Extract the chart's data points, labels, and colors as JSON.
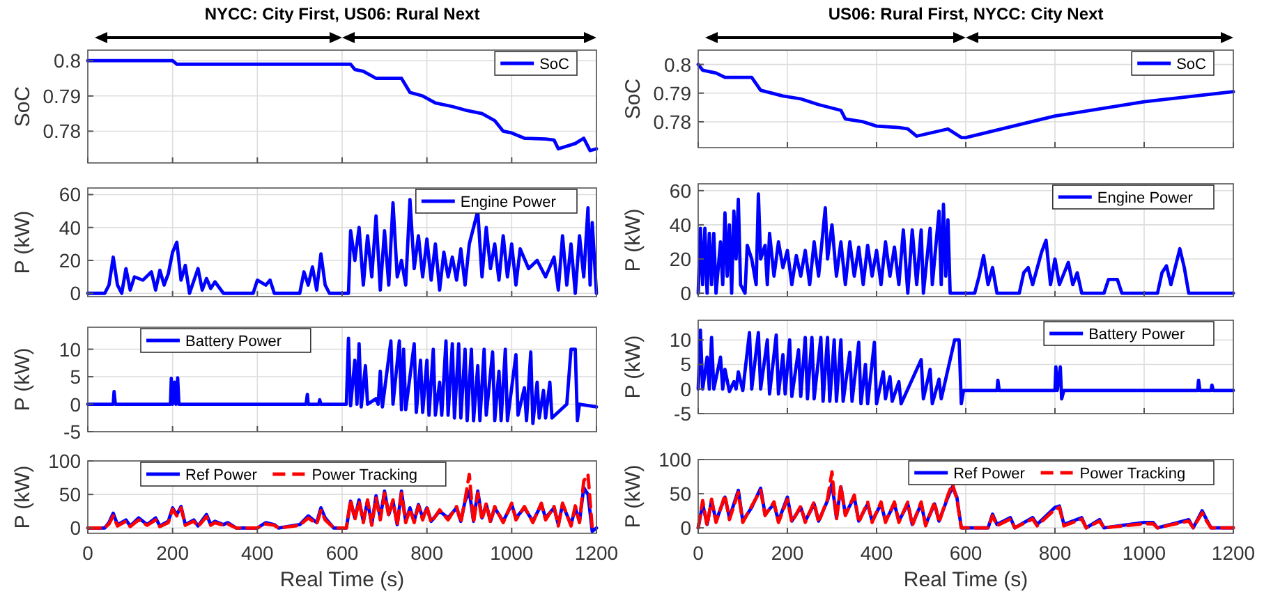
{
  "chart_data": [
    {
      "type": "line",
      "title": "NYCC: City First, US06: Rural Next",
      "ylabel": "SoC",
      "xlim": [
        0,
        1200
      ],
      "xticks": [
        0,
        200,
        400,
        600,
        800,
        1000,
        1200
      ],
      "ylim": [
        0.771,
        0.803
      ],
      "yticks": [
        0.78,
        0.79,
        0.8
      ],
      "grid": true,
      "legend": "top right",
      "tick_labels": "y",
      "series": [
        {
          "name": "SoC",
          "color": "#0000ff",
          "x": [
            0,
            200,
            210,
            620,
            630,
            650,
            680,
            740,
            760,
            790,
            820,
            860,
            890,
            930,
            960,
            980,
            1000,
            1030,
            1080,
            1100,
            1110,
            1150,
            1170,
            1185,
            1200
          ],
          "values": [
            0.8,
            0.8,
            0.799,
            0.799,
            0.7975,
            0.797,
            0.795,
            0.795,
            0.791,
            0.79,
            0.788,
            0.787,
            0.786,
            0.785,
            0.783,
            0.78,
            0.7795,
            0.778,
            0.7778,
            0.7775,
            0.775,
            0.7765,
            0.778,
            0.7745,
            0.775
          ]
        }
      ]
    },
    {
      "type": "line",
      "ylabel": "P (kW)",
      "xlim": [
        0,
        1200
      ],
      "xticks": [
        0,
        200,
        400,
        600,
        800,
        1000,
        1200
      ],
      "ylim": [
        -2,
        64
      ],
      "yticks": [
        0,
        20,
        40,
        60
      ],
      "grid": true,
      "legend": "top right",
      "tick_labels": "y",
      "series": [
        {
          "name": "Engine Power",
          "color": "#0000ff",
          "x": [
            0,
            40,
            50,
            60,
            70,
            80,
            90,
            100,
            110,
            130,
            150,
            160,
            170,
            180,
            190,
            200,
            210,
            220,
            230,
            240,
            260,
            270,
            280,
            290,
            300,
            320,
            390,
            400,
            420,
            430,
            440,
            500,
            510,
            520,
            530,
            540,
            550,
            560,
            570,
            615,
            620,
            630,
            640,
            650,
            660,
            670,
            680,
            690,
            700,
            710,
            720,
            730,
            740,
            750,
            760,
            770,
            780,
            790,
            800,
            810,
            820,
            830,
            840,
            850,
            860,
            870,
            880,
            890,
            900,
            920,
            930,
            940,
            950,
            960,
            970,
            980,
            990,
            1000,
            1010,
            1020,
            1040,
            1060,
            1080,
            1100,
            1110,
            1120,
            1130,
            1140,
            1150,
            1160,
            1170,
            1180,
            1185,
            1190,
            1200
          ],
          "values": [
            0,
            0,
            5,
            22,
            5,
            0,
            15,
            2,
            10,
            8,
            13,
            2,
            14,
            5,
            12,
            25,
            31,
            8,
            17,
            0,
            15,
            2,
            9,
            3,
            7,
            0,
            0,
            8,
            5,
            8,
            0,
            0,
            13,
            5,
            16,
            2,
            24,
            5,
            0,
            0,
            38,
            20,
            40,
            5,
            35,
            10,
            47,
            2,
            38,
            5,
            55,
            10,
            20,
            5,
            57,
            15,
            35,
            10,
            33,
            8,
            30,
            2,
            25,
            10,
            22,
            8,
            27,
            5,
            30,
            50,
            10,
            40,
            15,
            30,
            8,
            35,
            10,
            30,
            5,
            27,
            15,
            20,
            10,
            22,
            2,
            35,
            5,
            30,
            0,
            35,
            10,
            52,
            5,
            43,
            0
          ]
        }
      ]
    },
    {
      "type": "line",
      "ylabel": "P (kW)",
      "xlim": [
        0,
        1200
      ],
      "xticks": [
        0,
        200,
        400,
        600,
        800,
        1000,
        1200
      ],
      "ylim": [
        -5,
        14
      ],
      "yticks": [
        -5,
        0,
        5,
        10
      ],
      "grid": true,
      "legend": "top left",
      "tick_labels": "y",
      "series": [
        {
          "name": "Battery Power",
          "color": "#0000ff",
          "x": [
            0,
            60,
            62,
            65,
            195,
            197,
            200,
            205,
            208,
            212,
            215,
            515,
            518,
            520,
            545,
            547,
            550,
            610,
            615,
            620,
            630,
            635,
            640,
            645,
            655,
            660,
            680,
            685,
            690,
            695,
            715,
            720,
            735,
            740,
            745,
            750,
            770,
            775,
            785,
            790,
            800,
            805,
            815,
            820,
            830,
            835,
            845,
            850,
            860,
            865,
            875,
            880,
            890,
            895,
            905,
            910,
            920,
            925,
            935,
            940,
            955,
            960,
            970,
            975,
            985,
            990,
            1010,
            1015,
            1030,
            1035,
            1045,
            1050,
            1060,
            1065,
            1075,
            1080,
            1090,
            1095,
            1130,
            1140,
            1150,
            1155,
            1160,
            1200
          ],
          "values": [
            0,
            0,
            2.3,
            0,
            0,
            4.7,
            0,
            4,
            0,
            4.8,
            0,
            0,
            1.8,
            0,
            0,
            0.8,
            0,
            0,
            12,
            -0.3,
            8,
            0,
            11,
            -0.5,
            7,
            0,
            1,
            0,
            6,
            -0.5,
            11.5,
            0,
            11.5,
            -1,
            10,
            -1,
            11,
            -1.5,
            8,
            -1.5,
            8,
            -2,
            10,
            -2,
            4,
            -2,
            11.5,
            -2,
            11,
            -2.5,
            11,
            -2.5,
            10,
            -3,
            10,
            -3,
            7,
            -3,
            10,
            -2,
            9.5,
            -3,
            6,
            -3,
            10,
            -3,
            9,
            -2,
            3,
            -3,
            9.5,
            -3.5,
            4,
            -2.5,
            2.5,
            -2.5,
            4,
            -2.5,
            0,
            10,
            10,
            -3,
            0,
            -0.5
          ]
        }
      ]
    },
    {
      "type": "line",
      "ylabel": "P (kW)",
      "xlabel": "Real Time (s)",
      "xlim": [
        0,
        1200
      ],
      "xticks": [
        0,
        200,
        400,
        600,
        800,
        1000,
        1200
      ],
      "ylim": [
        -8,
        100
      ],
      "yticks": [
        0,
        50,
        100
      ],
      "grid": true,
      "legend": "top left",
      "series": [
        {
          "name": "Ref Power",
          "color": "#0000ff",
          "x": [
            0,
            40,
            50,
            60,
            70,
            90,
            100,
            120,
            140,
            160,
            170,
            190,
            200,
            210,
            220,
            230,
            250,
            260,
            280,
            290,
            300,
            320,
            330,
            350,
            400,
            420,
            440,
            450,
            500,
            520,
            540,
            550,
            560,
            580,
            610,
            620,
            630,
            640,
            650,
            660,
            670,
            680,
            690,
            700,
            710,
            720,
            730,
            740,
            750,
            760,
            770,
            780,
            790,
            800,
            810,
            830,
            850,
            870,
            880,
            890,
            900,
            910,
            920,
            930,
            940,
            950,
            960,
            980,
            1000,
            1010,
            1030,
            1050,
            1070,
            1080,
            1100,
            1110,
            1120,
            1140,
            1150,
            1160,
            1170,
            1180,
            1190,
            1200
          ],
          "values": [
            0,
            0,
            8,
            22,
            5,
            12,
            3,
            15,
            5,
            15,
            3,
            10,
            30,
            20,
            32,
            5,
            12,
            3,
            20,
            5,
            10,
            5,
            8,
            0,
            0,
            8,
            5,
            0,
            5,
            18,
            8,
            30,
            15,
            0,
            0,
            40,
            15,
            42,
            10,
            40,
            5,
            48,
            15,
            55,
            20,
            40,
            5,
            55,
            10,
            30,
            10,
            35,
            15,
            30,
            10,
            25,
            15,
            30,
            10,
            40,
            55,
            10,
            55,
            15,
            35,
            10,
            30,
            10,
            35,
            15,
            30,
            10,
            35,
            15,
            30,
            5,
            35,
            5,
            30,
            10,
            60,
            50,
            -5,
            0
          ]
        },
        {
          "name": "Power Tracking",
          "color": "#ff0000",
          "line_style": "dashed",
          "x": [
            0,
            40,
            50,
            60,
            70,
            90,
            100,
            120,
            140,
            160,
            170,
            190,
            200,
            210,
            220,
            230,
            250,
            260,
            280,
            290,
            300,
            320,
            330,
            350,
            400,
            420,
            440,
            450,
            500,
            520,
            540,
            550,
            560,
            580,
            610,
            620,
            630,
            640,
            650,
            660,
            670,
            680,
            690,
            700,
            710,
            720,
            730,
            740,
            750,
            760,
            770,
            780,
            790,
            800,
            810,
            830,
            850,
            870,
            880,
            890,
            900,
            910,
            920,
            930,
            940,
            950,
            960,
            980,
            1000,
            1010,
            1030,
            1050,
            1070,
            1080,
            1100,
            1110,
            1120,
            1140,
            1150,
            1160,
            1170,
            1180,
            1190,
            1200
          ],
          "values": [
            0,
            0,
            6,
            18,
            3,
            10,
            2,
            12,
            4,
            12,
            2,
            8,
            28,
            18,
            30,
            4,
            10,
            2,
            17,
            4,
            8,
            4,
            6,
            0,
            0,
            6,
            4,
            0,
            4,
            15,
            6,
            26,
            12,
            0,
            0,
            42,
            12,
            40,
            8,
            42,
            4,
            45,
            12,
            52,
            18,
            42,
            4,
            52,
            8,
            28,
            8,
            33,
            12,
            32,
            8,
            27,
            12,
            32,
            8,
            42,
            80,
            8,
            52,
            12,
            37,
            8,
            32,
            8,
            37,
            12,
            32,
            8,
            37,
            12,
            32,
            3,
            37,
            3,
            33,
            8,
            70,
            80,
            0,
            0
          ]
        }
      ]
    },
    {
      "type": "line",
      "title": "US06: Rural First, NYCC: City Next",
      "ylabel": "SoC",
      "xlim": [
        0,
        1200
      ],
      "xticks": [
        0,
        200,
        400,
        600,
        800,
        1000,
        1200
      ],
      "ylim": [
        0.771,
        0.805
      ],
      "yticks": [
        0.78,
        0.79,
        0.8
      ],
      "grid": true,
      "legend": "top right",
      "tick_labels": "y",
      "series": [
        {
          "name": "SoC",
          "color": "#0000ff",
          "x": [
            0,
            10,
            40,
            60,
            120,
            140,
            190,
            230,
            270,
            320,
            330,
            370,
            400,
            450,
            470,
            490,
            560,
            590,
            600,
            800,
            1000,
            1200
          ],
          "values": [
            0.8,
            0.798,
            0.797,
            0.7955,
            0.7955,
            0.791,
            0.789,
            0.788,
            0.786,
            0.784,
            0.781,
            0.78,
            0.7785,
            0.778,
            0.7775,
            0.775,
            0.7775,
            0.7745,
            0.7745,
            0.782,
            0.787,
            0.7905
          ]
        }
      ]
    },
    {
      "type": "line",
      "ylabel": "P (kW)",
      "xlim": [
        0,
        1200
      ],
      "xticks": [
        0,
        200,
        400,
        600,
        800,
        1000,
        1200
      ],
      "ylim": [
        -2,
        64
      ],
      "yticks": [
        0,
        20,
        40,
        60
      ],
      "grid": true,
      "legend": "top right",
      "tick_labels": "y",
      "series": [
        {
          "name": "Engine Power",
          "color": "#0000ff",
          "x": [
            0,
            5,
            10,
            15,
            20,
            25,
            30,
            35,
            40,
            50,
            55,
            60,
            65,
            70,
            75,
            80,
            85,
            90,
            95,
            105,
            110,
            120,
            130,
            135,
            140,
            150,
            155,
            160,
            170,
            180,
            190,
            200,
            210,
            220,
            230,
            240,
            250,
            260,
            270,
            285,
            290,
            300,
            310,
            320,
            330,
            340,
            350,
            360,
            370,
            380,
            390,
            400,
            410,
            420,
            430,
            440,
            450,
            460,
            470,
            480,
            490,
            500,
            505,
            520,
            525,
            540,
            545,
            550,
            555,
            560,
            565,
            620,
            630,
            640,
            650,
            660,
            670,
            720,
            730,
            740,
            750,
            770,
            780,
            790,
            800,
            810,
            830,
            840,
            850,
            860,
            910,
            920,
            940,
            950,
            1030,
            1040,
            1050,
            1060,
            1080,
            1090,
            1100,
            1200
          ],
          "values": [
            0,
            38,
            5,
            38,
            0,
            35,
            5,
            35,
            0,
            30,
            5,
            47,
            10,
            40,
            0,
            48,
            20,
            55,
            5,
            0,
            28,
            20,
            5,
            58,
            20,
            28,
            5,
            35,
            10,
            30,
            15,
            25,
            5,
            22,
            10,
            25,
            5,
            30,
            10,
            50,
            20,
            40,
            10,
            30,
            5,
            30,
            10,
            27,
            5,
            28,
            10,
            25,
            5,
            30,
            10,
            27,
            5,
            37,
            0,
            37,
            5,
            37,
            0,
            38,
            5,
            48,
            5,
            52,
            10,
            43,
            0,
            0,
            10,
            22,
            5,
            15,
            0,
            0,
            12,
            15,
            5,
            24,
            31,
            5,
            20,
            5,
            18,
            5,
            12,
            0,
            0,
            8,
            8,
            0,
            0,
            12,
            16,
            5,
            26,
            15,
            0,
            0
          ]
        }
      ]
    },
    {
      "type": "line",
      "ylabel": "P (kW)",
      "xlim": [
        0,
        1200
      ],
      "xticks": [
        0,
        200,
        400,
        600,
        800,
        1000,
        1200
      ],
      "ylim": [
        -5,
        14
      ],
      "yticks": [
        -5,
        0,
        5,
        10
      ],
      "grid": true,
      "legend": "top right",
      "tick_labels": "y",
      "series": [
        {
          "name": "Battery Power",
          "color": "#0000ff",
          "x": [
            0,
            5,
            10,
            20,
            25,
            30,
            35,
            50,
            55,
            60,
            70,
            80,
            85,
            90,
            100,
            115,
            120,
            135,
            140,
            155,
            160,
            175,
            180,
            190,
            195,
            205,
            210,
            225,
            230,
            240,
            245,
            255,
            260,
            275,
            280,
            290,
            295,
            305,
            310,
            320,
            325,
            340,
            345,
            360,
            365,
            375,
            380,
            395,
            400,
            415,
            420,
            430,
            435,
            450,
            455,
            500,
            505,
            520,
            525,
            540,
            545,
            575,
            585,
            590,
            595,
            600,
            670,
            672,
            675,
            800,
            802,
            805,
            812,
            815,
            820,
            1120,
            1122,
            1125,
            1150,
            1152,
            1155,
            1200
          ],
          "values": [
            0,
            12,
            0,
            6.5,
            0,
            10.5,
            0,
            6.5,
            0,
            4,
            -0.5,
            1.5,
            0,
            3.5,
            -0.3,
            11.5,
            0,
            11.5,
            0,
            10,
            -1,
            11,
            -1,
            7,
            -1,
            10,
            -1.5,
            8,
            -1.5,
            10.5,
            -2,
            10.5,
            -2,
            10.5,
            -2.5,
            10.5,
            -2.5,
            10,
            -2.5,
            10,
            -2.5,
            7.5,
            -2.5,
            9.5,
            -3,
            5,
            -3,
            9.5,
            -3,
            3.5,
            -2,
            2.5,
            -2.5,
            1.5,
            -3,
            6,
            -2,
            4,
            -3,
            2,
            -2,
            10,
            10,
            -3,
            -0.3,
            -0.3,
            -0.3,
            1.8,
            -0.3,
            -0.3,
            4.5,
            -0.3,
            4.5,
            -2,
            -0.3,
            -0.3,
            1.8,
            -0.3,
            -0.3,
            0.8,
            -0.3,
            -0.3
          ]
        }
      ]
    },
    {
      "type": "line",
      "ylabel": "P (kW)",
      "xlabel": "Real Time (s)",
      "xlim": [
        0,
        1200
      ],
      "xticks": [
        0,
        200,
        400,
        600,
        800,
        1000,
        1200
      ],
      "ylim": [
        -8,
        100
      ],
      "yticks": [
        0,
        50,
        100
      ],
      "grid": true,
      "legend": "top right",
      "series": [
        {
          "name": "Ref Power",
          "color": "#0000ff",
          "x": [
            0,
            10,
            20,
            30,
            40,
            60,
            70,
            90,
            100,
            120,
            140,
            150,
            170,
            180,
            200,
            210,
            230,
            240,
            260,
            270,
            290,
            300,
            310,
            320,
            330,
            350,
            360,
            380,
            390,
            410,
            420,
            440,
            450,
            470,
            480,
            500,
            510,
            530,
            540,
            560,
            570,
            580,
            590,
            650,
            660,
            670,
            700,
            710,
            750,
            760,
            800,
            810,
            820,
            860,
            870,
            900,
            910,
            1000,
            1020,
            1030,
            1100,
            1110,
            1130,
            1140,
            1150,
            1200
          ],
          "values": [
            0,
            35,
            5,
            40,
            10,
            45,
            15,
            55,
            10,
            30,
            58,
            20,
            35,
            10,
            45,
            10,
            30,
            10,
            35,
            10,
            40,
            65,
            15,
            60,
            20,
            45,
            10,
            35,
            10,
            35,
            10,
            35,
            10,
            35,
            5,
            35,
            5,
            35,
            10,
            45,
            60,
            45,
            0,
            0,
            20,
            5,
            15,
            0,
            15,
            5,
            30,
            32,
            5,
            15,
            0,
            12,
            0,
            8,
            8,
            0,
            12,
            0,
            25,
            12,
            0,
            0
          ]
        },
        {
          "name": "Power Tracking",
          "color": "#ff0000",
          "line_style": "dashed",
          "x": [
            0,
            10,
            20,
            30,
            40,
            60,
            70,
            90,
            100,
            120,
            140,
            150,
            170,
            180,
            200,
            210,
            230,
            240,
            260,
            270,
            290,
            300,
            310,
            320,
            330,
            350,
            360,
            380,
            390,
            410,
            420,
            440,
            450,
            470,
            480,
            500,
            510,
            530,
            540,
            560,
            570,
            580,
            590,
            650,
            660,
            670,
            700,
            710,
            750,
            760,
            800,
            810,
            820,
            860,
            870,
            900,
            910,
            1000,
            1020,
            1030,
            1100,
            1110,
            1130,
            1140,
            1150,
            1200
          ],
          "values": [
            0,
            40,
            3,
            42,
            8,
            48,
            12,
            52,
            8,
            32,
            55,
            18,
            38,
            8,
            42,
            8,
            32,
            8,
            38,
            8,
            42,
            82,
            12,
            62,
            18,
            48,
            8,
            38,
            8,
            38,
            8,
            38,
            8,
            38,
            3,
            38,
            3,
            38,
            8,
            48,
            65,
            42,
            0,
            0,
            18,
            3,
            13,
            0,
            13,
            3,
            27,
            30,
            3,
            13,
            0,
            10,
            0,
            6,
            6,
            0,
            10,
            0,
            22,
            10,
            0,
            0
          ]
        }
      ]
    }
  ]
}
